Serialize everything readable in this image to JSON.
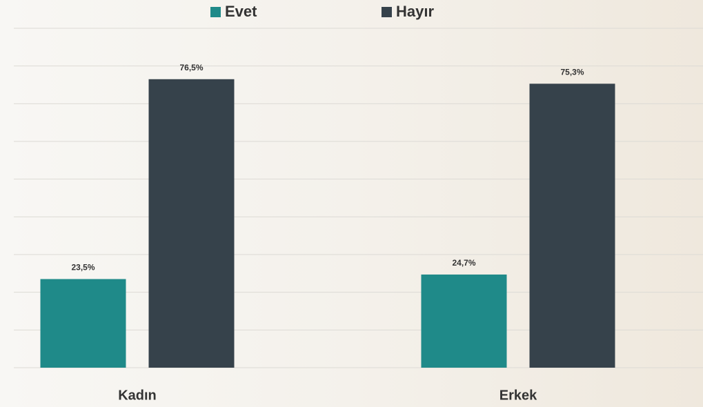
{
  "chart_data": {
    "type": "bar",
    "categories": [
      "Kadın",
      "Erkek"
    ],
    "series": [
      {
        "name": "Evet",
        "color": "#1f8a89",
        "values": [
          23.5,
          24.7
        ],
        "value_labels": [
          "23,5%",
          "24,7%"
        ]
      },
      {
        "name": "Hayır",
        "color": "#36424b",
        "values": [
          76.5,
          75.3
        ],
        "value_labels": [
          "76,5%",
          "75,3%"
        ]
      }
    ],
    "ylim": [
      0,
      90
    ],
    "yticks": [
      0,
      10,
      20,
      30,
      40,
      50,
      60,
      70,
      80,
      90
    ],
    "grid": true,
    "legend": "top"
  }
}
